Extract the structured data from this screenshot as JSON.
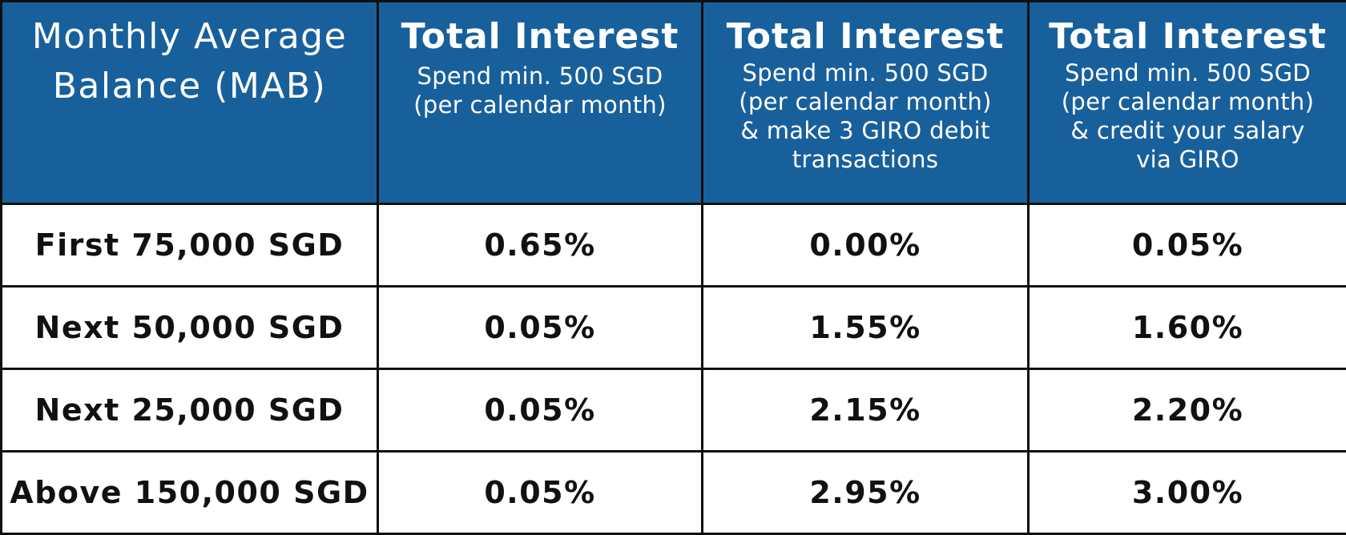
{
  "header": {
    "balance_column": "Monthly Average Balance (MAB)",
    "columns": [
      {
        "title": "Total Interest",
        "condition": "Spend min. 500 SGD (per calendar month)"
      },
      {
        "title": "Total Interest",
        "condition": "Spend min. 500 SGD (per calendar month) & make 3 GIRO debit transactions"
      },
      {
        "title": "Total Interest",
        "condition": "Spend min. 500 SGD (per calendar month) & credit your salary via GIRO"
      }
    ]
  },
  "rows": [
    {
      "balance": "First 75,000 SGD",
      "rates": [
        "0.65%",
        "0.00%",
        "0.05%"
      ]
    },
    {
      "balance": "Next 50,000 SGD",
      "rates": [
        "0.05%",
        "1.55%",
        "1.60%"
      ]
    },
    {
      "balance": "Next 25,000 SGD",
      "rates": [
        "0.05%",
        "2.15%",
        "2.20%"
      ]
    },
    {
      "balance": "Above 150,000 SGD",
      "rates": [
        "0.05%",
        "2.95%",
        "3.00%"
      ]
    }
  ],
  "colors": {
    "header_background": "#18609c",
    "header_text": "#ffffff",
    "border": "#0f0f0f",
    "body_text": "#111111"
  }
}
